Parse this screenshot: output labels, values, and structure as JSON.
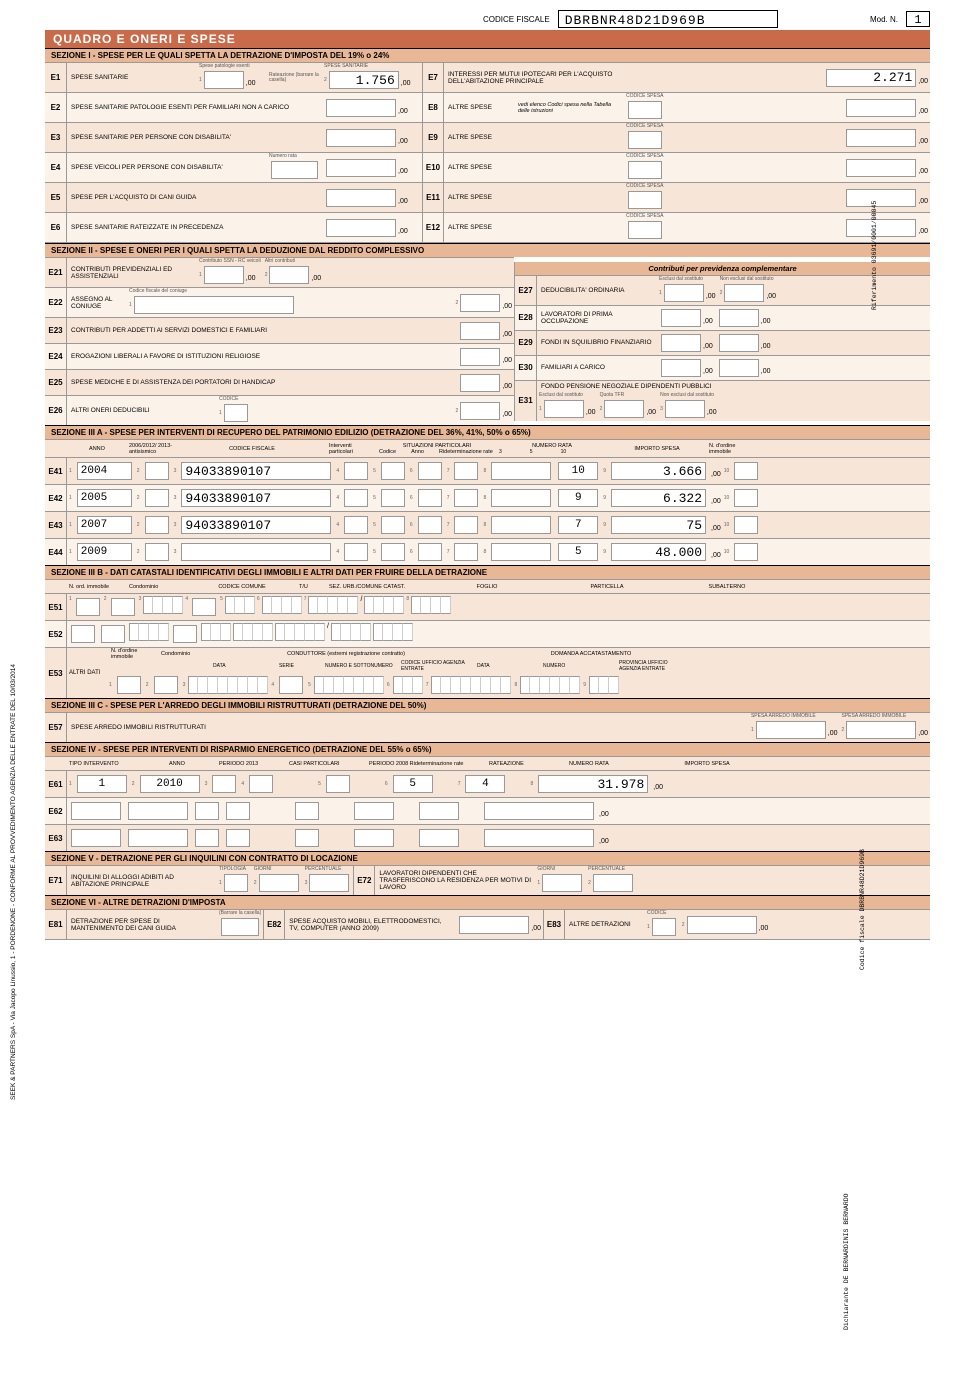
{
  "header": {
    "cf_label": "CODICE FISCALE",
    "cf_value": "DBRBNR48D21D969B",
    "mod": "Mod. N.",
    "modn": "1"
  },
  "quadro": "QUADRO  E  ONERI E SPESE",
  "sec1": "SEZIONE I  -  SPESE PER LE QUALI SPETTA LA DETRAZIONE D'IMPOSTA DEL 19% o 24%",
  "E1": {
    "label": "SPESE SANITARIE",
    "tiny": "Spese patologie esenti",
    "rate": "Rateazione (barrare la casella)",
    "sanit": "SPESE SANITARIE",
    "v2": "1.756"
  },
  "E2": {
    "label": "SPESE SANITARIE PATOLOGIE ESENTI PER FAMILIARI NON A CARICO"
  },
  "E3": {
    "label": "SPESE SANITARIE PER PERSONE CON DISABILITA'"
  },
  "E4": {
    "label": "SPESE VEICOLI PER PERSONE CON DISABILITA'",
    "nr": "Numero rata"
  },
  "E5": {
    "label": "SPESE PER L'ACQUISTO DI CANI GUIDA"
  },
  "E6": {
    "label": "SPESE SANITARIE RATEIZZATE IN PRECEDENZA"
  },
  "E7": {
    "label": "INTERESSI PER MUTUI IPOTECARI PER L'ACQUISTO DELL'ABITAZIONE PRINCIPALE",
    "v": "2.271"
  },
  "E8": {
    "label": "ALTRE SPESE",
    "note": "vedi elenco Codici spesa nella Tabella delle istruzioni",
    "cs": "CODICE SPESA"
  },
  "E9": {
    "label": "ALTRE SPESE"
  },
  "E10": {
    "label": "ALTRE SPESE"
  },
  "E11": {
    "label": "ALTRE SPESE"
  },
  "E12": {
    "label": "ALTRE SPESE"
  },
  "sec2": "SEZIONE II  -  SPESE E ONERI PER I QUALI SPETTA LA DEDUZIONE DAL REDDITO COMPLESSIVO",
  "E21": {
    "label": "CONTRIBUTI PREVIDENZIALI ED ASSISTENZIALI",
    "h1": "Contributo SSN - RC veicoli",
    "h2": "Altri contributi"
  },
  "E22": {
    "label": "ASSEGNO AL CONIUGE",
    "h": "Codice fiscale del coniuge"
  },
  "E23": {
    "label": "CONTRIBUTI PER ADDETTI AI SERVIZI DOMESTICI E FAMILIARI"
  },
  "E24": {
    "label": "EROGAZIONI LIBERALI A FAVORE DI ISTITUZIONI RELIGIOSE"
  },
  "E25": {
    "label": "SPESE MEDICHE E DI ASSISTENZA DEI PORTATORI DI HANDICAP"
  },
  "E26": {
    "label": "ALTRI ONERI DEDUCIBILI",
    "cod": "CODICE"
  },
  "contrib": "Contributi per previdenza complementare",
  "E27": {
    "label": "DEDUCIBILITA' ORDINARIA",
    "h1": "Esclusi dal sostituto",
    "h2": "Non esclusi dal sostituto"
  },
  "E28": {
    "label": "LAVORATORI DI PRIMA OCCUPAZIONE"
  },
  "E29": {
    "label": "FONDI IN SQUILIBRIO FINANZIARIO"
  },
  "E30": {
    "label": "FAMILIARI A CARICO"
  },
  "E31": {
    "label": "FONDO PENSIONE NEGOZIALE DIPENDENTI PUBBLICI",
    "h1": "Esclusi dal sostituto",
    "h2": "Quota TFR",
    "h3": "Non esclusi dal sostituto"
  },
  "sec3a": "SEZIONE III A - SPESE PER INTERVENTI DI RECUPERO DEL PATRIMONIO EDILIZIO (DETRAZIONE DEL 36%, 41%, 50% o 65%)",
  "s3ah": {
    "anno": "ANNO",
    "y": "2006/2012/ 2013-antisismico",
    "cf": "CODICE FISCALE",
    "int": "Interventi particolari",
    "sit": "SITUAZIONI PARTICOLARI",
    "cod": "Codice",
    "an": "Anno",
    "rid": "Rideterminazione rate",
    "nr": "NUMERO RATA",
    "imp": "IMPORTO SPESA",
    "ord": "N. d'ordine immobile"
  },
  "E41": {
    "anno": "2004",
    "cf": "94033890107",
    "r": "10",
    "imp": "3.666"
  },
  "E42": {
    "anno": "2005",
    "cf": "94033890107",
    "r": "9",
    "imp": "6.322"
  },
  "E43": {
    "anno": "2007",
    "cf": "94033890107",
    "r": "7",
    "imp": "75"
  },
  "E44": {
    "anno": "2009",
    "r": "5",
    "imp": "48.000"
  },
  "sec3b": "SEZIONE III B - DATI CATASTALI IDENTIFICATIVI DEGLI IMMOBILI E ALTRI DATI PER FRUIRE DELLA DETRAZIONE",
  "s3bh": {
    "n": "N. ord. immobile",
    "cond": "Condominio",
    "cc": "CODICE COMUNE",
    "tu": "T/U",
    "sez": "SEZ. URB./COMUNE CATAST.",
    "fog": "FOGLIO",
    "part": "PARTICELLA",
    "sub": "SUBALTERNO"
  },
  "E53h": {
    "alt": "ALTRI DATI",
    "n": "N. d'ordine immobile",
    "cond": "Condominio",
    "cnd": "CONDUTTORE (estremi registrazione contratto)",
    "data": "DATA",
    "ser": "SERIE",
    "num": "NUMERO E SOTTONUMERO",
    "cue": "CODICE UFFICIO AGENZIA ENTRATE",
    "dom": "DOMANDA ACCATASTAMENTO",
    "data2": "DATA",
    "num2": "NUMERO",
    "pue": "PROVINCIA UFFICIO AGENZIA ENTRATE"
  },
  "sec3c": "SEZIONE III C - SPESE PER L'ARREDO DEGLI IMMOBILI RISTRUTTURATI (DETRAZIONE DEL 50%)",
  "E57": {
    "label": "SPESE ARREDO IMMOBILI RISTRUTTURATI",
    "h1": "SPESA ARREDO IMMOBILE",
    "h2": "SPESA ARREDO IMMOBILE"
  },
  "sec4": "SEZIONE IV  -  SPESE PER INTERVENTI DI RISPARMIO ENERGETICO (DETRAZIONE DEL 55% o 65%)",
  "s4h": {
    "tipo": "TIPO INTERVENTO",
    "anno": "ANNO",
    "per": "PERIODO 2013",
    "casi": "CASI PARTICOLARI",
    "p08": "PERIODO 2008 Rideterminazione rate",
    "rate": "RATEAZIONE",
    "nr": "NUMERO RATA",
    "imp": "IMPORTO SPESA"
  },
  "E61": {
    "tipo": "1",
    "anno": "2010",
    "rate": "5",
    "nr": "4",
    "imp": "31.978"
  },
  "sec5": "SEZIONE V  -  DETRAZIONE PER GLI INQUILINI CON CONTRATTO DI LOCAZIONE",
  "E71": {
    "label": "INQUILINI DI ALLOGGI ADIBITI AD ABITAZIONE PRINCIPALE",
    "tip": "TIPOLOGIA",
    "gio": "GIORNI",
    "per": "PERCENTUALE"
  },
  "E72": {
    "label": "LAVORATORI DIPENDENTI CHE TRASFERISCONO LA RESIDENZA PER MOTIVI DI LAVORO",
    "gio": "GIORNI",
    "per": "PERCENTUALE"
  },
  "sec6": "SEZIONE VI  -  ALTRE DETRAZIONI D'IMPOSTA",
  "E81": {
    "label": "DETRAZIONE PER SPESE DI MANTENIMENTO DEI CANI GUIDA",
    "bar": "(Barrare la casella)"
  },
  "E82": {
    "label": "SPESE ACQUISTO MOBILI, ELETTRODOMESTICI, TV, COMPUTER (ANNO 2009)"
  },
  "E83": {
    "label": "ALTRE DETRAZIONI",
    "cod": "CODICE"
  },
  "side": {
    "left": "SEEK & PARTNERS SpA - Via Jacopo Linussio, 1 - PORDENONE - CONFORME AL PROVVEDIMENTO AGENZIA DELLE ENTRATE DEL 10/03/2014",
    "r1": "Riferimento 03691/0001/00045",
    "r2": "Codice fiscale DBRBNR48D21D969B",
    "r3": "Dichiarante DE BERNARDINIS BERNARDO"
  }
}
